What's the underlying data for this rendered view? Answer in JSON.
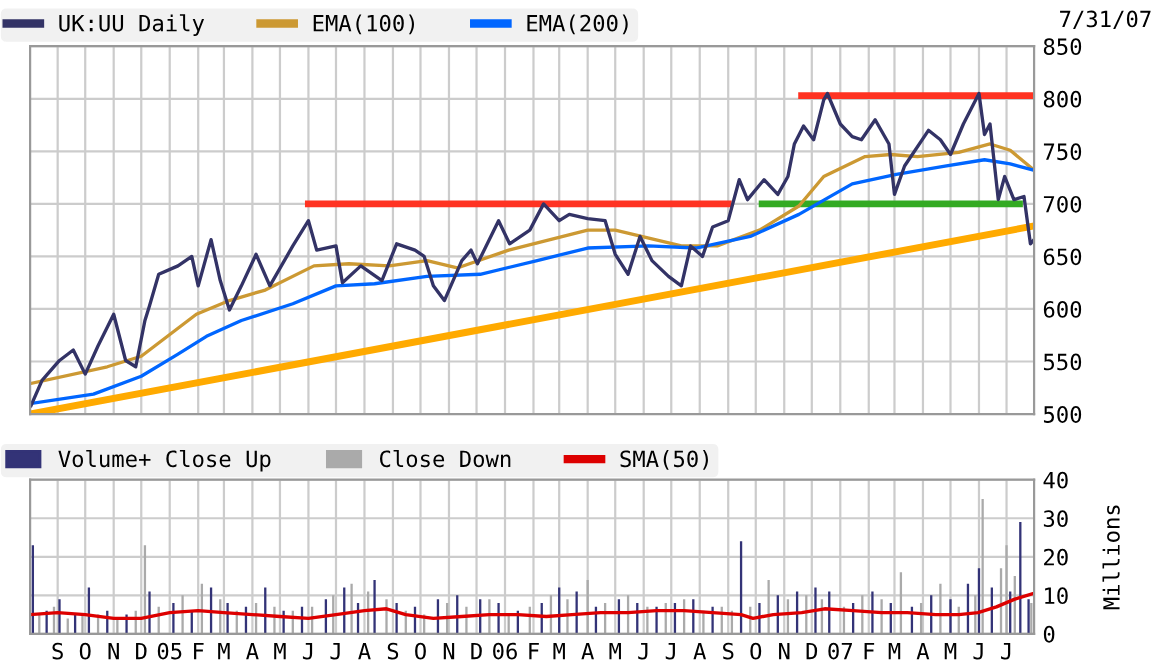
{
  "chart_data": [
    {
      "type": "line",
      "legend": "top",
      "grid": true,
      "tick_labels": "y",
      "marker": "none",
      "line_style": "solid",
      "annotations": [
        "7/31/07"
      ],
      "xlim": [
        "2004-08-02",
        "2007-07-31"
      ],
      "ylim": [
        500,
        850
      ],
      "yticks": [
        500,
        550,
        600,
        650,
        700,
        750,
        800,
        850
      ],
      "xticks": [
        {
          "value": "2004-09-01",
          "label": null
        },
        {
          "value": "2004-10-01",
          "label": null
        },
        {
          "value": "2004-11-01",
          "label": null
        },
        {
          "value": "2004-12-01",
          "label": null
        },
        {
          "value": "2005-01-01",
          "label": null
        },
        {
          "value": "2005-02-01",
          "label": null
        },
        {
          "value": "2005-03-01",
          "label": null
        },
        {
          "value": "2005-04-01",
          "label": null
        },
        {
          "value": "2005-05-01",
          "label": null
        },
        {
          "value": "2005-06-01",
          "label": null
        },
        {
          "value": "2005-07-01",
          "label": null
        },
        {
          "value": "2005-08-01",
          "label": null
        },
        {
          "value": "2005-09-01",
          "label": null
        },
        {
          "value": "2005-10-01",
          "label": null
        },
        {
          "value": "2005-11-01",
          "label": null
        },
        {
          "value": "2005-12-01",
          "label": null
        },
        {
          "value": "2006-01-01",
          "label": null
        },
        {
          "value": "2006-02-01",
          "label": null
        },
        {
          "value": "2006-03-01",
          "label": null
        },
        {
          "value": "2006-04-01",
          "label": null
        },
        {
          "value": "2006-05-01",
          "label": null
        },
        {
          "value": "2006-06-01",
          "label": null
        },
        {
          "value": "2006-07-01",
          "label": null
        },
        {
          "value": "2006-08-01",
          "label": null
        },
        {
          "value": "2006-09-01",
          "label": null
        },
        {
          "value": "2006-10-01",
          "label": null
        },
        {
          "value": "2006-11-01",
          "label": null
        },
        {
          "value": "2006-12-01",
          "label": null
        },
        {
          "value": "2007-01-01",
          "label": null
        },
        {
          "value": "2007-02-01",
          "label": null
        },
        {
          "value": "2007-03-01",
          "label": null
        },
        {
          "value": "2007-04-01",
          "label": null
        },
        {
          "value": "2007-05-01",
          "label": null
        },
        {
          "value": "2007-06-01",
          "label": null
        },
        {
          "value": "2007-07-01",
          "label": null
        }
      ],
      "series": [
        {
          "type": "line",
          "color": "#ffaa00",
          "x": [
            "2004-08-02",
            "2007-07-31"
          ],
          "values": [
            500,
            679
          ]
        },
        {
          "type": "line",
          "color": "#ff3322",
          "x": [
            "2005-06-01",
            "2006-09-01"
          ],
          "values": [
            700,
            700
          ]
        },
        {
          "type": "line",
          "color": "#ff3322",
          "x": [
            "2006-11-20",
            "2007-07-31"
          ],
          "values": [
            803,
            803
          ]
        },
        {
          "type": "line",
          "color": "#33aa22",
          "x": [
            "2006-10-08",
            "2007-07-15"
          ],
          "values": [
            700,
            700
          ]
        },
        {
          "type": "line",
          "name": "EMA(100)",
          "color": "#cc9933",
          "x": [
            "2004-08-02",
            "2004-10-25",
            "2004-12-01",
            "2005-01-30",
            "2005-03-07",
            "2005-04-15",
            "2005-06-07",
            "2005-07-15",
            "2005-08-28",
            "2005-10-08",
            "2005-11-10",
            "2006-01-05",
            "2006-04-01",
            "2006-05-01",
            "2006-07-12",
            "2006-08-20",
            "2006-10-05",
            "2006-11-17",
            "2006-12-14",
            "2007-01-28",
            "2007-02-25",
            "2007-03-26",
            "2007-05-10",
            "2007-06-13",
            "2007-07-05",
            "2007-07-31"
          ],
          "values": [
            529,
            545,
            555,
            595,
            608,
            618,
            641,
            643,
            641,
            646,
            639,
            656,
            675,
            675,
            660,
            660,
            675,
            698,
            726,
            745,
            747,
            745,
            749,
            757,
            751,
            732
          ]
        },
        {
          "type": "line",
          "name": "EMA(200)",
          "color": "#0066ff",
          "x": [
            "2004-08-02",
            "2004-10-10",
            "2004-12-01",
            "2005-01-10",
            "2005-02-10",
            "2005-03-20",
            "2005-05-15",
            "2005-07-01",
            "2005-08-12",
            "2005-10-08",
            "2005-12-05",
            "2006-02-05",
            "2006-04-01",
            "2006-06-06",
            "2006-07-28",
            "2006-09-25",
            "2006-11-17",
            "2007-01-14",
            "2007-03-03",
            "2007-04-25",
            "2007-06-07",
            "2007-07-05",
            "2007-07-31"
          ],
          "values": [
            510,
            519,
            536,
            557,
            574,
            589,
            605,
            622,
            624,
            631,
            633,
            646,
            658,
            660,
            658,
            669,
            690,
            719,
            728,
            736,
            742,
            738,
            732
          ]
        },
        {
          "type": "line",
          "name": "UK:UU Daily",
          "color": "#333366",
          "x": [
            "2004-08-03",
            "2004-08-15",
            "2004-09-03",
            "2004-09-18",
            "2004-10-01",
            "2004-10-15",
            "2004-11-01",
            "2004-11-14",
            "2004-11-25",
            "2004-12-05",
            "2004-12-10",
            "2004-12-20",
            "2005-01-10",
            "2005-01-25",
            "2005-02-01",
            "2005-02-15",
            "2005-02-25",
            "2005-03-07",
            "2005-03-20",
            "2005-04-05",
            "2005-04-20",
            "2005-05-15",
            "2005-06-01",
            "2005-06-10",
            "2005-07-01",
            "2005-07-08",
            "2005-07-28",
            "2005-08-20",
            "2005-09-05",
            "2005-09-25",
            "2005-10-05",
            "2005-10-15",
            "2005-10-27",
            "2005-11-15",
            "2005-11-25",
            "2005-12-02",
            "2005-12-25",
            "2006-01-06",
            "2006-01-28",
            "2006-02-12",
            "2006-03-01",
            "2006-03-12",
            "2006-04-01",
            "2006-04-20",
            "2006-05-01",
            "2006-05-15",
            "2006-05-28",
            "2006-06-10",
            "2006-06-28",
            "2006-07-12",
            "2006-07-22",
            "2006-08-04",
            "2006-08-15",
            "2006-09-01",
            "2006-09-13",
            "2006-09-22",
            "2006-10-10",
            "2006-10-25",
            "2006-11-05",
            "2006-11-12",
            "2006-11-22",
            "2006-12-03",
            "2006-12-14",
            "2006-12-18",
            "2007-01-01",
            "2007-01-14",
            "2007-01-24",
            "2007-02-08",
            "2007-02-23",
            "2007-03-01",
            "2007-03-12",
            "2007-04-07",
            "2007-04-20",
            "2007-05-01",
            "2007-05-15",
            "2007-06-01",
            "2007-06-07",
            "2007-06-13",
            "2007-06-22",
            "2007-06-29",
            "2007-07-09",
            "2007-07-20",
            "2007-07-27",
            "2007-07-31"
          ],
          "values": [
            508,
            532,
            551,
            561,
            538,
            565,
            595,
            551,
            545,
            589,
            603,
            633,
            641,
            650,
            622,
            666,
            627,
            599,
            622,
            652,
            622,
            660,
            684,
            656,
            660,
            625,
            641,
            627,
            662,
            656,
            650,
            622,
            608,
            646,
            656,
            643,
            684,
            662,
            675,
            700,
            684,
            690,
            686,
            684,
            652,
            633,
            669,
            646,
            631,
            622,
            660,
            650,
            678,
            684,
            723,
            704,
            723,
            709,
            726,
            757,
            774,
            761,
            799,
            805,
            776,
            764,
            761,
            780,
            757,
            709,
            736,
            770,
            761,
            747,
            776,
            805,
            766,
            776,
            704,
            726,
            704,
            707,
            662,
            666
          ]
        }
      ]
    },
    {
      "type": "bar",
      "legend": "top",
      "grid": true,
      "ylabel": "Millions",
      "xlim": [
        "2004-08-02",
        "2007-07-31"
      ],
      "ylim": [
        0,
        40
      ],
      "yticks": [
        0,
        10,
        20,
        30,
        40
      ],
      "xticks": [
        {
          "value": "2004-09-01",
          "label": "S"
        },
        {
          "value": "2004-10-01",
          "label": "O"
        },
        {
          "value": "2004-11-01",
          "label": "N"
        },
        {
          "value": "2004-12-01",
          "label": "D"
        },
        {
          "value": "2005-01-01",
          "label": "05"
        },
        {
          "value": "2005-02-01",
          "label": "F"
        },
        {
          "value": "2005-03-01",
          "label": "M"
        },
        {
          "value": "2005-04-01",
          "label": "A"
        },
        {
          "value": "2005-05-01",
          "label": "M"
        },
        {
          "value": "2005-06-01",
          "label": "J"
        },
        {
          "value": "2005-07-01",
          "label": "J"
        },
        {
          "value": "2005-08-01",
          "label": "A"
        },
        {
          "value": "2005-09-01",
          "label": "S"
        },
        {
          "value": "2005-10-01",
          "label": "O"
        },
        {
          "value": "2005-11-01",
          "label": "N"
        },
        {
          "value": "2005-12-01",
          "label": "D"
        },
        {
          "value": "2006-01-01",
          "label": "06"
        },
        {
          "value": "2006-02-01",
          "label": "F"
        },
        {
          "value": "2006-03-01",
          "label": "M"
        },
        {
          "value": "2006-04-01",
          "label": "A"
        },
        {
          "value": "2006-05-01",
          "label": "M"
        },
        {
          "value": "2006-06-01",
          "label": "J"
        },
        {
          "value": "2006-07-01",
          "label": "J"
        },
        {
          "value": "2006-08-01",
          "label": "A"
        },
        {
          "value": "2006-09-01",
          "label": "S"
        },
        {
          "value": "2006-10-01",
          "label": "O"
        },
        {
          "value": "2006-11-01",
          "label": "N"
        },
        {
          "value": "2006-12-01",
          "label": "D"
        },
        {
          "value": "2007-01-01",
          "label": "07"
        },
        {
          "value": "2007-02-01",
          "label": "F"
        },
        {
          "value": "2007-03-01",
          "label": "M"
        },
        {
          "value": "2007-04-01",
          "label": "A"
        },
        {
          "value": "2007-05-01",
          "label": "M"
        },
        {
          "value": "2007-06-01",
          "label": "J"
        },
        {
          "value": "2007-07-01",
          "label": "J"
        }
      ],
      "series": [
        {
          "type": "bar",
          "name": "Volume+ Close Up",
          "color": "#333377",
          "x": [
            "2004-08-05",
            "2004-08-20",
            "2004-09-03",
            "2004-09-20",
            "2004-10-05",
            "2004-10-25",
            "2004-11-15",
            "2004-12-10",
            "2005-01-05",
            "2005-01-25",
            "2005-02-15",
            "2005-03-05",
            "2005-03-25",
            "2005-04-15",
            "2005-05-05",
            "2005-05-25",
            "2005-06-20",
            "2005-07-10",
            "2005-07-25",
            "2005-08-12",
            "2005-09-05",
            "2005-09-25",
            "2005-10-20",
            "2005-11-10",
            "2005-12-05",
            "2005-12-25",
            "2006-01-15",
            "2006-02-10",
            "2006-03-01",
            "2006-03-20",
            "2006-04-10",
            "2006-05-05",
            "2006-05-25",
            "2006-06-15",
            "2006-07-05",
            "2006-07-25",
            "2006-08-15",
            "2006-09-15",
            "2006-10-05",
            "2006-10-25",
            "2006-11-15",
            "2006-12-05",
            "2006-12-20",
            "2007-01-15",
            "2007-02-05",
            "2007-02-25",
            "2007-03-20",
            "2007-04-10",
            "2007-05-01",
            "2007-05-20",
            "2007-06-01",
            "2007-06-15",
            "2007-07-05",
            "2007-07-16",
            "2007-07-25"
          ],
          "values": [
            23,
            6,
            9,
            5,
            12,
            6,
            5,
            11,
            8,
            6,
            12,
            8,
            7,
            12,
            6,
            7,
            9,
            12,
            8,
            14,
            8,
            7,
            9,
            10,
            9,
            8,
            6,
            8,
            12,
            11,
            7,
            9,
            8,
            7,
            8,
            9,
            7,
            24,
            8,
            10,
            11,
            12,
            11,
            8,
            11,
            8,
            7,
            10,
            9,
            13,
            17,
            12,
            11,
            29,
            9
          ]
        },
        {
          "type": "bar",
          "name": "Close Down",
          "color": "#aaaaaa",
          "x": [
            "2004-08-12",
            "2004-08-28",
            "2004-09-12",
            "2004-09-28",
            "2004-10-15",
            "2004-11-05",
            "2004-11-25",
            "2004-12-05",
            "2004-12-20",
            "2005-01-15",
            "2005-02-05",
            "2005-02-25",
            "2005-03-15",
            "2005-04-05",
            "2005-04-25",
            "2005-05-15",
            "2005-06-05",
            "2005-06-28",
            "2005-07-18",
            "2005-08-05",
            "2005-08-25",
            "2005-09-15",
            "2005-10-05",
            "2005-10-30",
            "2005-11-20",
            "2005-12-15",
            "2006-01-05",
            "2006-01-28",
            "2006-02-20",
            "2006-03-10",
            "2006-04-01",
            "2006-04-20",
            "2006-05-15",
            "2006-06-05",
            "2006-06-25",
            "2006-07-15",
            "2006-08-05",
            "2006-08-25",
            "2006-09-05",
            "2006-09-25",
            "2006-10-15",
            "2006-11-05",
            "2006-11-25",
            "2006-12-12",
            "2007-01-05",
            "2007-01-25",
            "2007-02-15",
            "2007-03-08",
            "2007-03-30",
            "2007-04-20",
            "2007-05-10",
            "2007-05-28",
            "2007-06-05",
            "2007-06-25",
            "2007-07-01",
            "2007-07-10",
            "2007-07-28"
          ],
          "values": [
            5,
            7,
            4,
            5,
            5,
            4,
            6,
            23,
            7,
            10,
            13,
            9,
            6,
            8,
            7,
            6,
            7,
            10,
            13,
            11,
            9,
            6,
            5,
            8,
            7,
            9,
            5,
            7,
            10,
            9,
            14,
            8,
            10,
            7,
            8,
            9,
            6,
            7,
            6,
            7,
            14,
            9,
            10,
            9,
            7,
            10,
            9,
            16,
            8,
            13,
            7,
            10,
            35,
            17,
            23,
            15,
            8
          ]
        },
        {
          "type": "line",
          "name": "SMA(50)",
          "color": "#dd0000",
          "x": [
            "2004-08-02",
            "2004-09-01",
            "2004-10-01",
            "2004-11-01",
            "2004-12-01",
            "2005-01-01",
            "2005-02-01",
            "2005-03-01",
            "2005-04-01",
            "2005-05-01",
            "2005-06-01",
            "2005-07-01",
            "2005-08-01",
            "2005-08-25",
            "2005-09-15",
            "2005-10-15",
            "2005-11-15",
            "2005-12-15",
            "2006-01-15",
            "2006-02-15",
            "2006-03-15",
            "2006-04-15",
            "2006-05-15",
            "2006-06-15",
            "2006-07-15",
            "2006-08-15",
            "2006-09-15",
            "2006-09-28",
            "2006-10-20",
            "2006-11-20",
            "2006-12-15",
            "2007-01-15",
            "2007-02-15",
            "2007-03-15",
            "2007-04-15",
            "2007-05-10",
            "2007-05-31",
            "2007-06-20",
            "2007-07-10",
            "2007-07-31"
          ],
          "values": [
            5,
            5.5,
            5,
            4,
            4,
            5.5,
            6,
            5.5,
            5,
            4.5,
            4,
            5,
            6,
            6.5,
            5,
            4,
            4.5,
            5,
            5,
            4.5,
            5,
            5.5,
            5.5,
            6,
            6,
            5.5,
            5,
            4,
            5,
            5.5,
            6.5,
            6,
            5.5,
            5.5,
            5,
            5,
            5.5,
            7,
            9,
            10.5
          ]
        }
      ]
    }
  ]
}
